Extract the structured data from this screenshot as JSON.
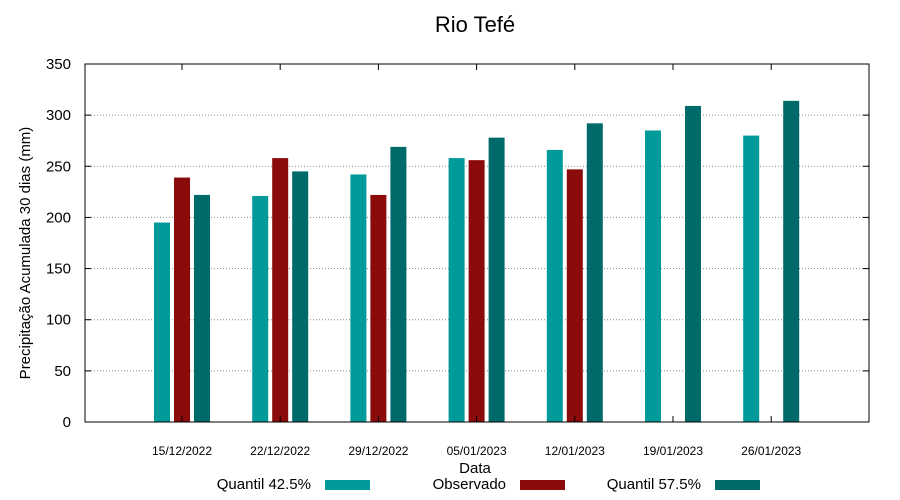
{
  "chart_data": {
    "type": "bar",
    "title": "Rio Tefé",
    "xlabel": "Data",
    "ylabel": "Precipitação Acumulada 30 dias (mm)",
    "ylim": [
      0,
      350
    ],
    "yticks": [
      0,
      50,
      100,
      150,
      200,
      250,
      300,
      350
    ],
    "grid": true,
    "legend_position": "bottom",
    "categories": [
      "15/12/2022",
      "22/12/2022",
      "29/12/2022",
      "05/01/2023",
      "12/01/2023",
      "19/01/2023",
      "26/01/2023"
    ],
    "series": [
      {
        "name": "Quantil 42.5%",
        "color": "#009a9a",
        "values": [
          195,
          221,
          242,
          258,
          266,
          285,
          280
        ]
      },
      {
        "name": "Observado",
        "color": "#8b0a0a",
        "values": [
          239,
          258,
          222,
          256,
          247,
          null,
          null
        ]
      },
      {
        "name": "Quantil 57.5%",
        "color": "#006a6a",
        "values": [
          222,
          245,
          269,
          278,
          292,
          309,
          314
        ]
      }
    ]
  }
}
